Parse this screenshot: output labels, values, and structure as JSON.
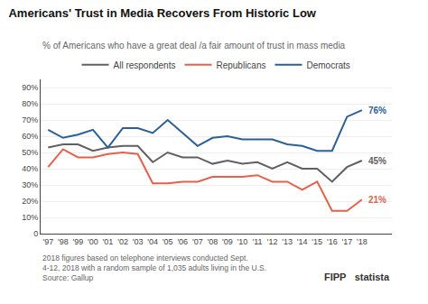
{
  "chart_data": {
    "type": "line",
    "title": "Americans' Trust in Media Recovers From Historic Low",
    "subtitle": "% of Americans who have a great deal /a fair amount of trust in mass media",
    "x": [
      1997,
      1998,
      1999,
      2000,
      2001,
      2002,
      2003,
      2004,
      2005,
      2006,
      2007,
      2008,
      2009,
      2010,
      2011,
      2012,
      2013,
      2014,
      2015,
      2016,
      2017,
      2018
    ],
    "series": [
      {
        "name": "All respondents",
        "color": "#606060",
        "values": [
          53,
          55,
          55,
          51,
          53,
          54,
          54,
          44,
          50,
          47,
          47,
          43,
          45,
          43,
          44,
          40,
          44,
          40,
          40,
          32,
          41,
          45
        ],
        "value_labels": [
          null,
          null,
          null,
          null,
          null,
          null,
          null,
          null,
          null,
          null,
          null,
          null,
          null,
          null,
          null,
          null,
          null,
          null,
          null,
          null,
          null,
          "45%"
        ]
      },
      {
        "name": "Republicans",
        "color": "#e8604a",
        "values": [
          41,
          52,
          47,
          47,
          49,
          50,
          49,
          31,
          31,
          32,
          32,
          35,
          35,
          35,
          36,
          32,
          32,
          27,
          32,
          14,
          14,
          21
        ],
        "value_labels": [
          null,
          null,
          null,
          null,
          null,
          null,
          null,
          null,
          null,
          null,
          null,
          null,
          null,
          null,
          null,
          null,
          null,
          null,
          null,
          null,
          null,
          "21%"
        ]
      },
      {
        "name": "Democrats",
        "color": "#2a6097",
        "values": [
          64,
          59,
          61,
          64,
          53,
          65,
          65,
          62,
          70,
          62,
          54,
          59,
          60,
          58,
          58,
          58,
          55,
          54,
          51,
          51,
          72,
          76
        ],
        "value_labels": [
          null,
          null,
          null,
          null,
          null,
          null,
          null,
          null,
          null,
          null,
          null,
          null,
          null,
          null,
          null,
          null,
          null,
          null,
          null,
          null,
          null,
          "76%"
        ]
      }
    ],
    "xlim": [
      1996.5,
      2020.0
    ],
    "xticks": [
      {
        "value": 1997,
        "label": "'97"
      },
      {
        "value": 1998,
        "label": "'98"
      },
      {
        "value": 1999,
        "label": "'99"
      },
      {
        "value": 2000,
        "label": "'00"
      },
      {
        "value": 2001,
        "label": "'01"
      },
      {
        "value": 2002,
        "label": "'02"
      },
      {
        "value": 2003,
        "label": "'03"
      },
      {
        "value": 2004,
        "label": "'04"
      },
      {
        "value": 2005,
        "label": "'05"
      },
      {
        "value": 2006,
        "label": "'06"
      },
      {
        "value": 2007,
        "label": "'07"
      },
      {
        "value": 2008,
        "label": "'08"
      },
      {
        "value": 2009,
        "label": "'09"
      },
      {
        "value": 2010,
        "label": "'10"
      },
      {
        "value": 2011,
        "label": "'11"
      },
      {
        "value": 2012,
        "label": "'12"
      },
      {
        "value": 2013,
        "label": "'13"
      },
      {
        "value": 2014,
        "label": "'14"
      },
      {
        "value": 2015,
        "label": "'15"
      },
      {
        "value": 2016,
        "label": "'16"
      },
      {
        "value": 2017,
        "label": "'17"
      },
      {
        "value": 2018,
        "label": "'18"
      }
    ],
    "ylim": [
      0,
      95
    ],
    "yticks": [
      0,
      {
        "value": 10,
        "label": "10%"
      },
      {
        "value": 20,
        "label": "20%"
      },
      {
        "value": 30,
        "label": "30%"
      },
      {
        "value": 40,
        "label": "40%"
      },
      {
        "value": 50,
        "label": "50%"
      },
      {
        "value": 60,
        "label": "60%"
      },
      {
        "value": 70,
        "label": "70%"
      },
      {
        "value": 80,
        "label": "80%"
      },
      {
        "value": 90,
        "label": "90%"
      }
    ],
    "grid": true,
    "legend": "top",
    "data_labels": true,
    "footer": [
      "2018 figures based on telephone interviews conducted Sept.",
      "4-12, 2018 with a random sample of 1,035 adults living in the U.S.",
      "Source: Gallup"
    ],
    "annotations": [
      "FIPP",
      "statista"
    ]
  }
}
